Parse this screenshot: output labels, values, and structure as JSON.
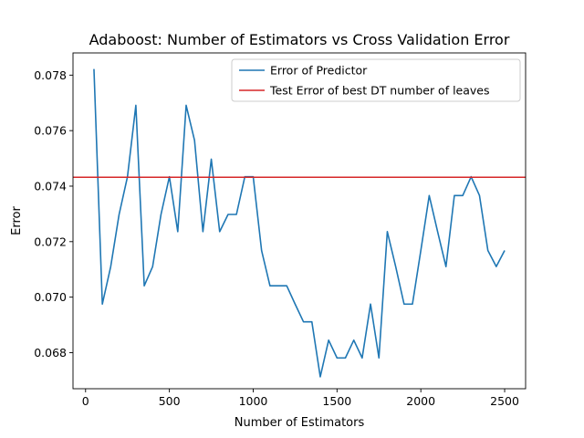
{
  "chart_data": {
    "type": "line",
    "title": "Adaboost: Number of Estimators vs Cross Validation Error",
    "xlabel": "Number of Estimators",
    "ylabel": "Error",
    "xlim": [
      -75,
      2625
    ],
    "ylim": [
      0.0667,
      0.0788
    ],
    "xticks": [
      0,
      500,
      1000,
      1500,
      2000,
      2500
    ],
    "xtick_labels": [
      "0",
      "500",
      "1000",
      "1500",
      "2000",
      "2500"
    ],
    "yticks": [
      0.068,
      0.07,
      0.072,
      0.074,
      0.076,
      0.078
    ],
    "ytick_labels": [
      "0.068",
      "0.070",
      "0.072",
      "0.074",
      "0.076",
      "0.078"
    ],
    "grid": false,
    "legend_position": "upper right",
    "series": [
      {
        "name": "Error of Predictor",
        "color": "#1f77b4",
        "x": [
          50,
          100,
          150,
          200,
          250,
          300,
          350,
          400,
          450,
          500,
          550,
          600,
          650,
          700,
          750,
          800,
          850,
          900,
          950,
          1000,
          1050,
          1100,
          1150,
          1200,
          1250,
          1300,
          1350,
          1400,
          1450,
          1500,
          1550,
          1600,
          1650,
          1700,
          1750,
          1800,
          1850,
          1900,
          1950,
          2000,
          2050,
          2100,
          2150,
          2200,
          2250,
          2300,
          2350,
          2400,
          2450,
          2500
        ],
        "y": [
          0.07822,
          0.06975,
          0.0711,
          0.07298,
          0.07434,
          0.07691,
          0.07041,
          0.0711,
          0.07298,
          0.07434,
          0.07236,
          0.07691,
          0.07565,
          0.07236,
          0.07497,
          0.07236,
          0.07298,
          0.07298,
          0.07434,
          0.07434,
          0.07168,
          0.07041,
          0.07041,
          0.07041,
          0.06975,
          0.06911,
          0.06911,
          0.06713,
          0.06845,
          0.06781,
          0.06781,
          0.06845,
          0.06781,
          0.06975,
          0.06781,
          0.07236,
          0.0711,
          0.06975,
          0.06975,
          0.07168,
          0.07366,
          0.07236,
          0.0711,
          0.07366,
          0.07366,
          0.07434,
          0.07366,
          0.07168,
          0.0711,
          0.07168
        ]
      },
      {
        "name": "Test Error of best DT number of leaves",
        "color": "#d62728",
        "type": "hline",
        "y": 0.07432
      }
    ]
  }
}
